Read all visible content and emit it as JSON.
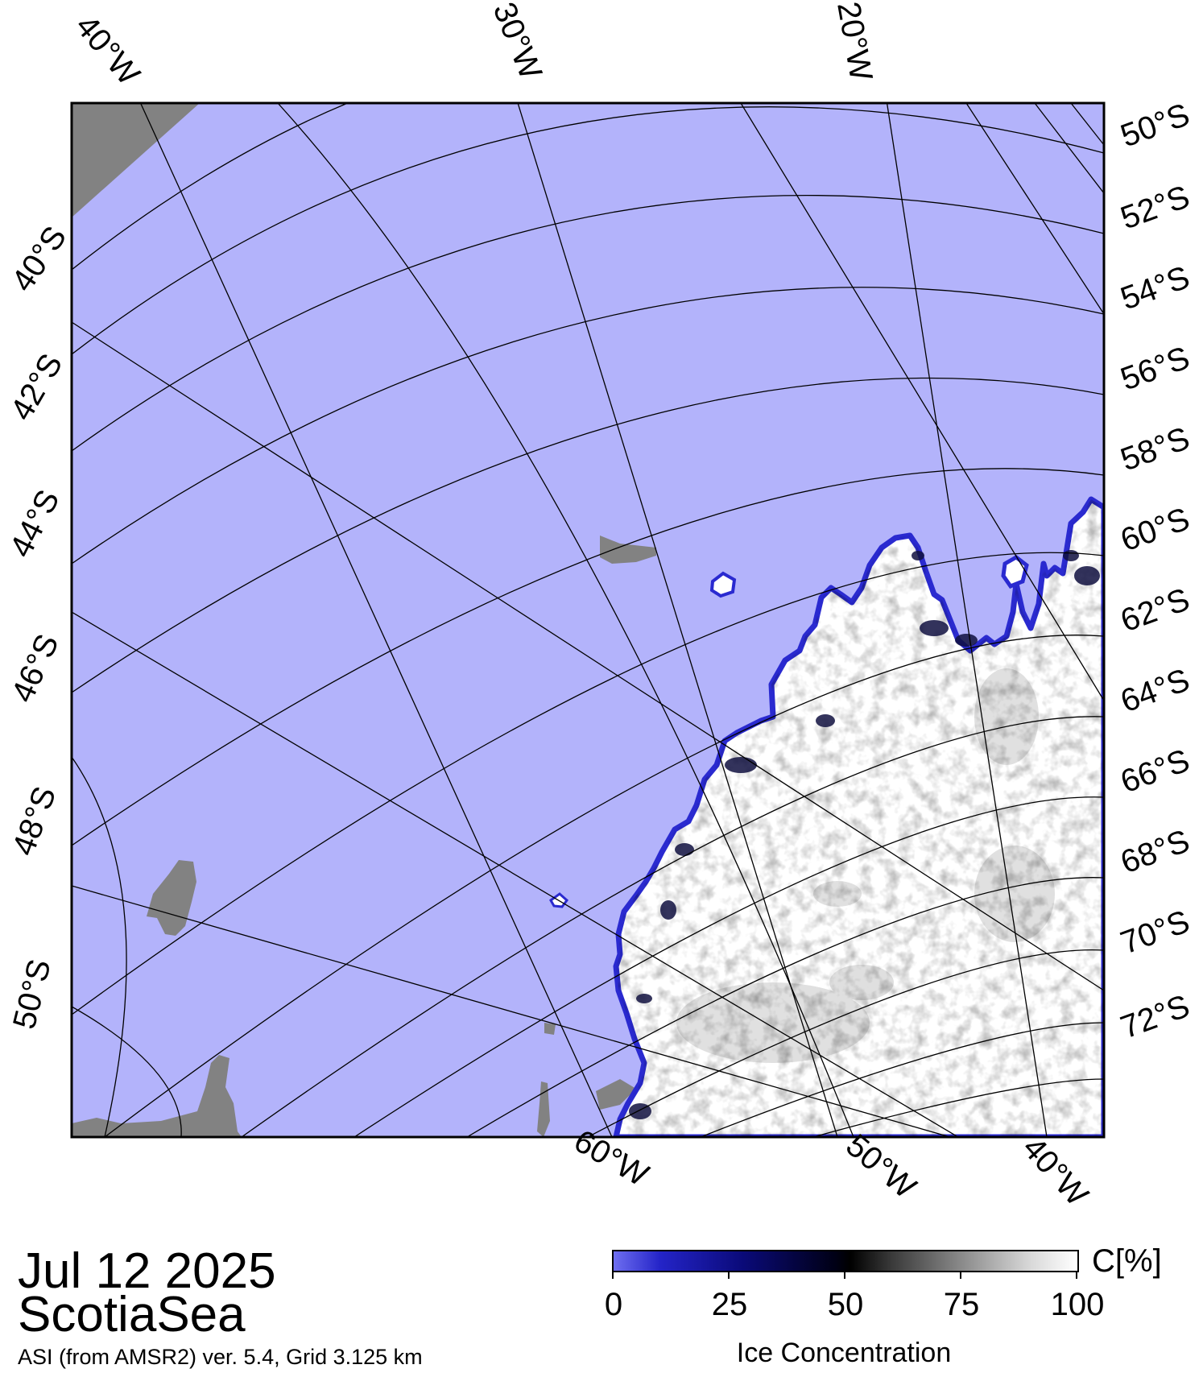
{
  "map": {
    "lon_top_labels": [
      "40°W",
      "30°W",
      "20°W"
    ],
    "lon_bottom_labels": [
      "60°W",
      "50°W",
      "40°W"
    ],
    "lat_right_labels": [
      "50°S",
      "52°S",
      "54°S",
      "56°S",
      "58°S",
      "60°S",
      "62°S",
      "64°S",
      "66°S",
      "68°S",
      "70°S",
      "72°S"
    ],
    "lat_left_labels": [
      "40°S",
      "42°S",
      "44°S",
      "46°S",
      "48°S",
      "50°S"
    ],
    "colors": {
      "ocean": "#b3b3fb",
      "land": "#828282",
      "ice_high": "#ffffff",
      "ice_edge": "#2a2ad0",
      "grid": "#000000"
    }
  },
  "info": {
    "date": "Jul 12 2025",
    "region": "ScotiaSea",
    "product": "ASI (from AMSR2) ver. 5.4,  Grid 3.125 km"
  },
  "colorbar": {
    "unit": "C[%]",
    "title": "Ice Concentration",
    "ticks": [
      "0",
      "25",
      "50",
      "75",
      "100"
    ],
    "range": [
      0,
      100
    ]
  }
}
